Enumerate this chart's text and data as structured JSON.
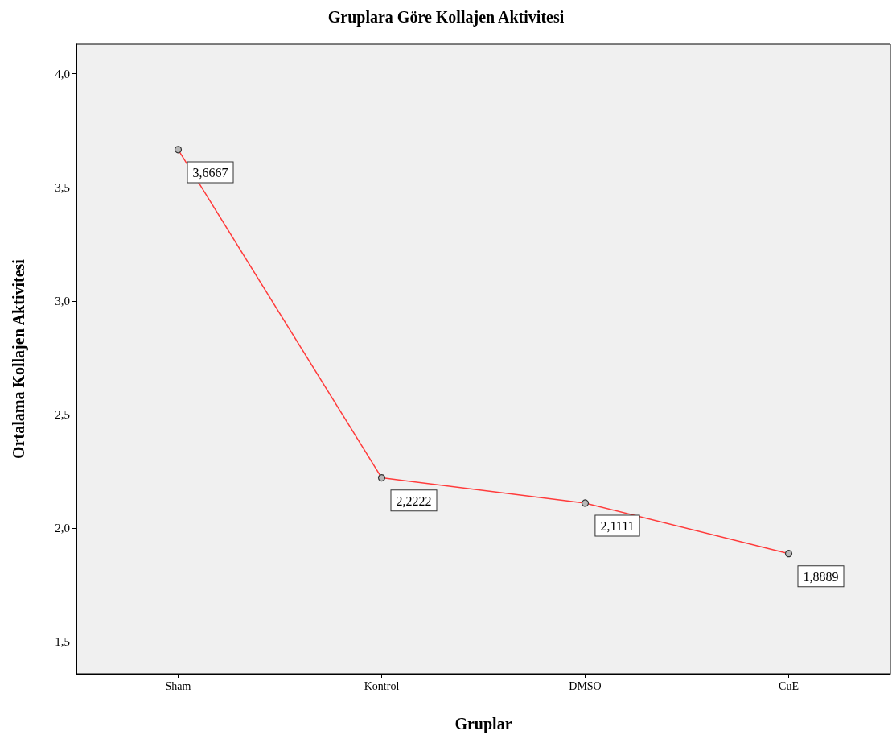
{
  "chart_data": {
    "type": "line",
    "title": "Gruplara Göre Kollajen Aktivitesi",
    "xlabel": "Gruplar",
    "ylabel": "Ortalama Kollajen Aktivitesi",
    "categories": [
      "Sham",
      "Kontrol",
      "DMSO",
      "CuE"
    ],
    "series": [
      {
        "color": "#ff3b3b",
        "values": [
          3.6667,
          2.2222,
          2.1111,
          1.8889
        ],
        "value_labels": [
          "3,6667",
          "2,2222",
          "2,1111",
          "1,8889"
        ]
      }
    ],
    "ylim": [
      1.36,
      4.13
    ],
    "yticks": [
      {
        "value": 1.5,
        "label": "1,5"
      },
      {
        "value": 2,
        "label": "2,0"
      },
      {
        "value": 2.5,
        "label": "2,5"
      },
      {
        "value": 3,
        "label": "3,0"
      },
      {
        "value": 3.5,
        "label": "3,5"
      },
      {
        "value": 4,
        "label": "4,0"
      }
    ],
    "grid": false,
    "marker": "circle",
    "line_style": "solid"
  }
}
